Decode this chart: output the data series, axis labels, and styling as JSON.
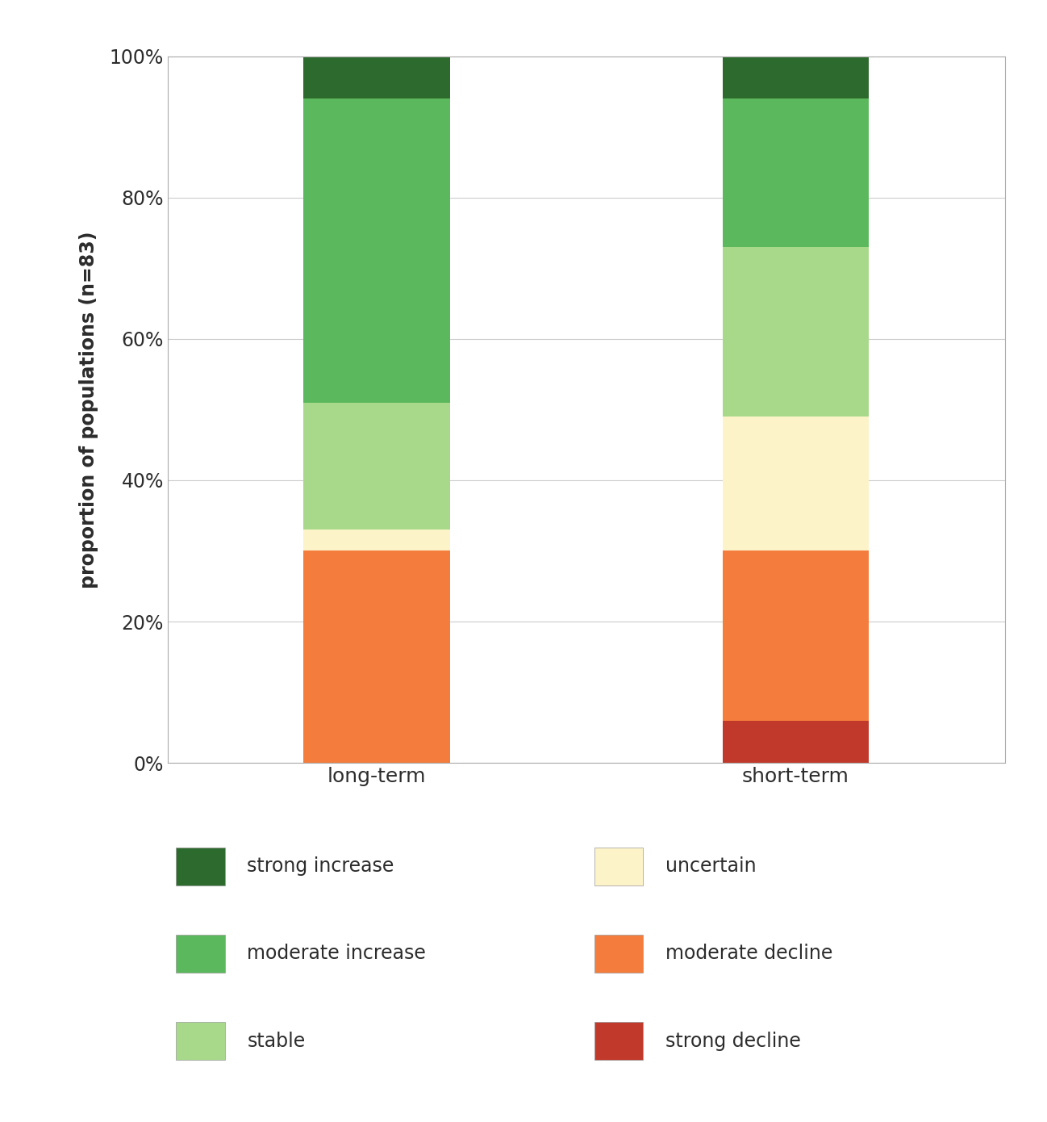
{
  "categories": [
    "long-term",
    "short-term"
  ],
  "segments": [
    {
      "label": "strong decline",
      "color": "#c0392b",
      "values": [
        0.0,
        0.06
      ]
    },
    {
      "label": "moderate decline",
      "color": "#f47c3c",
      "values": [
        0.3,
        0.24
      ]
    },
    {
      "label": "uncertain",
      "color": "#fdf3c8",
      "values": [
        0.03,
        0.19
      ]
    },
    {
      "label": "stable",
      "color": "#a8d98a",
      "values": [
        0.18,
        0.24
      ]
    },
    {
      "label": "moderate increase",
      "color": "#5cb85c",
      "values": [
        0.43,
        0.21
      ]
    },
    {
      "label": "strong increase",
      "color": "#2d6a2d",
      "values": [
        0.06,
        0.06
      ]
    }
  ],
  "ylabel": "proportion of populations (n=83)",
  "yticks": [
    0,
    0.2,
    0.4,
    0.6,
    0.8,
    1.0
  ],
  "ytick_labels": [
    "0%",
    "20%",
    "40%",
    "60%",
    "80%",
    "100%"
  ],
  "bar_width": 0.35,
  "bar_positions": [
    1,
    2
  ],
  "xlim": [
    0.5,
    2.5
  ],
  "legend_items_left": [
    {
      "label": "strong increase",
      "color": "#2d6a2d"
    },
    {
      "label": "moderate increase",
      "color": "#5cb85c"
    },
    {
      "label": "stable",
      "color": "#a8d98a"
    }
  ],
  "legend_items_right": [
    {
      "label": "uncertain",
      "color": "#fdf3c8"
    },
    {
      "label": "moderate decline",
      "color": "#f47c3c"
    },
    {
      "label": "strong decline",
      "color": "#c0392b"
    }
  ],
  "background_color": "#ffffff",
  "grid_color": "#cccccc",
  "text_color": "#2c2c2c",
  "font_size_ticks": 17,
  "font_size_xlabels": 18,
  "font_size_ylabel": 17,
  "font_size_legend": 17
}
